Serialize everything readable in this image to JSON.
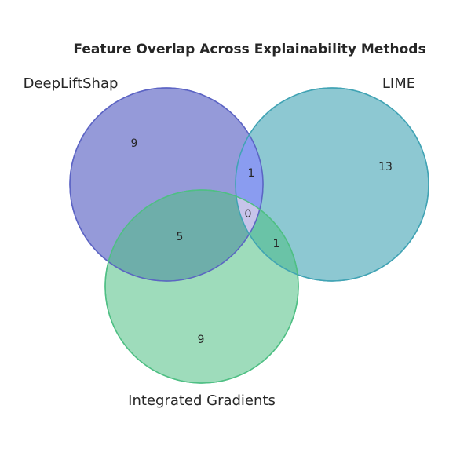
{
  "title": "Feature Overlap Across Explainability Methods",
  "sets": [
    {
      "name": "DeepLiftShap",
      "color": "#5c64c4"
    },
    {
      "name": "LIME",
      "color": "#41a3b4"
    },
    {
      "name": "Integrated Gradients",
      "color": "#4fbf84"
    }
  ],
  "overlap_color": "#8a9cf0",
  "regions": {
    "deepliftshap_only": "9",
    "lime_only": "13",
    "integrated_gradients_only": "9",
    "deepliftshap_lime": "1",
    "deepliftshap_integrated_gradients": "5",
    "lime_integrated_gradients": "1",
    "all_three": "0"
  }
}
